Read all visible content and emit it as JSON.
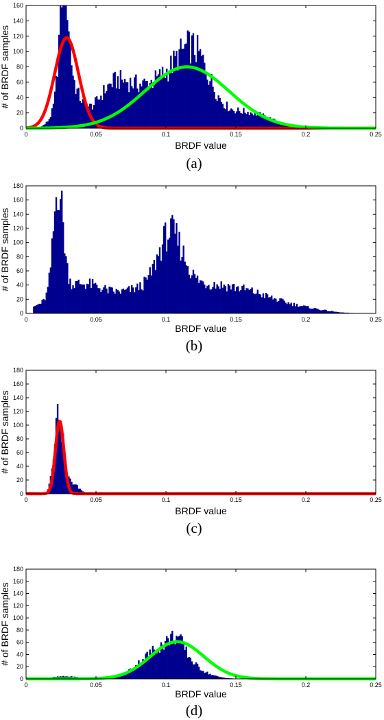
{
  "chart_data": [
    {
      "type": "histogram",
      "caption": "(a)",
      "xlabel": "BRDF value",
      "ylabel": "# of BRDF samples",
      "xlim": [
        0,
        0.25
      ],
      "ylim": [
        0,
        160
      ],
      "xticks": [
        0,
        0.05,
        0.1,
        0.15,
        0.2,
        0.25
      ],
      "xtick_labels": [
        "0",
        "0.05",
        "0.1",
        "0.15",
        "0.2",
        "0.25"
      ],
      "yticks": [
        0,
        20,
        40,
        60,
        80,
        100,
        120,
        140,
        160
      ],
      "ytick_labels": [
        "0",
        "20",
        "40",
        "60",
        "80",
        "100",
        "120",
        "140",
        "160"
      ],
      "bar_color": "#00008f",
      "histogram": {
        "peaks": [
          {
            "center": 0.027,
            "width": 0.003,
            "height": 145
          },
          {
            "center": 0.03,
            "width": 0.0075,
            "height": 60
          },
          {
            "center": 0.062,
            "width": 0.012,
            "height": 42
          },
          {
            "center": 0.1,
            "width": 0.024,
            "height": 62
          },
          {
            "center": 0.12,
            "width": 0.011,
            "height": 60
          },
          {
            "center": 0.16,
            "width": 0.016,
            "height": 18
          }
        ],
        "range": [
          0.008,
          0.205
        ]
      },
      "fits": [
        {
          "color": "#ff0000",
          "mean": 0.029,
          "sigma": 0.0085,
          "amplitude": 118
        },
        {
          "color": "#00ff00",
          "mean": 0.115,
          "sigma": 0.03,
          "amplitude": 80
        }
      ]
    },
    {
      "type": "histogram",
      "caption": "(b)",
      "xlabel": "BRDF value",
      "ylabel": "# of BRDF samples",
      "xlim": [
        0,
        0.25
      ],
      "ylim": [
        0,
        180
      ],
      "xticks": [
        0,
        0.05,
        0.1,
        0.15,
        0.2,
        0.25
      ],
      "xtick_labels": [
        "0",
        "0.05",
        "0.1",
        "0.15",
        "0.2",
        "0.25"
      ],
      "yticks": [
        0,
        20,
        40,
        60,
        80,
        100,
        120,
        140,
        160,
        180
      ],
      "ytick_labels": [
        "0",
        "20",
        "40",
        "60",
        "80",
        "100",
        "120",
        "140",
        "160",
        "180"
      ],
      "bar_color": "#00008f",
      "histogram": {
        "peaks": [
          {
            "center": 0.023,
            "width": 0.0035,
            "height": 150
          },
          {
            "center": 0.04,
            "width": 0.02,
            "height": 42
          },
          {
            "center": 0.08,
            "width": 0.012,
            "height": 20
          },
          {
            "center": 0.103,
            "width": 0.009,
            "height": 85
          },
          {
            "center": 0.125,
            "width": 0.025,
            "height": 38
          },
          {
            "center": 0.165,
            "width": 0.02,
            "height": 18
          },
          {
            "center": 0.2,
            "width": 0.015,
            "height": 5
          }
        ],
        "range": [
          0.005,
          0.24
        ]
      },
      "fits": []
    },
    {
      "type": "histogram",
      "caption": "(c)",
      "xlabel": "BRDF value",
      "ylabel": "# of BRDF samples",
      "xlim": [
        0,
        0.25
      ],
      "ylim": [
        0,
        180
      ],
      "xticks": [
        0,
        0.05,
        0.1,
        0.15,
        0.2,
        0.25
      ],
      "xtick_labels": [
        "0",
        "0.05",
        "0.1",
        "0.15",
        "0.2",
        "0.25"
      ],
      "yticks": [
        0,
        20,
        40,
        60,
        80,
        100,
        120,
        140,
        160,
        180
      ],
      "ytick_labels": [
        "0",
        "20",
        "40",
        "60",
        "80",
        "100",
        "120",
        "140",
        "160",
        "180"
      ],
      "bar_color": "#00008f",
      "histogram": {
        "peaks": [
          {
            "center": 0.023,
            "width": 0.0032,
            "height": 115
          },
          {
            "center": 0.032,
            "width": 0.005,
            "height": 16
          }
        ],
        "range": [
          0.015,
          0.05
        ]
      },
      "fits": [
        {
          "color": "#ff0000",
          "mean": 0.024,
          "sigma": 0.003,
          "amplitude": 106
        }
      ]
    },
    {
      "type": "histogram",
      "caption": "(d)",
      "xlabel": "BRDF value",
      "ylabel": "# of BRDF samples",
      "xlim": [
        0,
        0.25
      ],
      "ylim": [
        0,
        180
      ],
      "xticks": [
        0,
        0.05,
        0.1,
        0.15,
        0.2,
        0.25
      ],
      "xtick_labels": [
        "0",
        "0.05",
        "0.1",
        "0.15",
        "0.2",
        "0.25"
      ],
      "yticks": [
        0,
        20,
        40,
        60,
        80,
        100,
        120,
        140,
        160,
        180
      ],
      "ytick_labels": [
        "0",
        "20",
        "40",
        "60",
        "80",
        "100",
        "120",
        "140",
        "160",
        "180"
      ],
      "bar_color": "#00008f",
      "histogram": {
        "peaks": [
          {
            "center": 0.1,
            "width": 0.016,
            "height": 55
          },
          {
            "center": 0.108,
            "width": 0.005,
            "height": 20
          },
          {
            "center": 0.028,
            "width": 0.01,
            "height": 4
          }
        ],
        "range": [
          0.018,
          0.165
        ]
      },
      "fits": [
        {
          "color": "#00ff00",
          "mean": 0.108,
          "sigma": 0.019,
          "amplitude": 61
        }
      ]
    }
  ]
}
